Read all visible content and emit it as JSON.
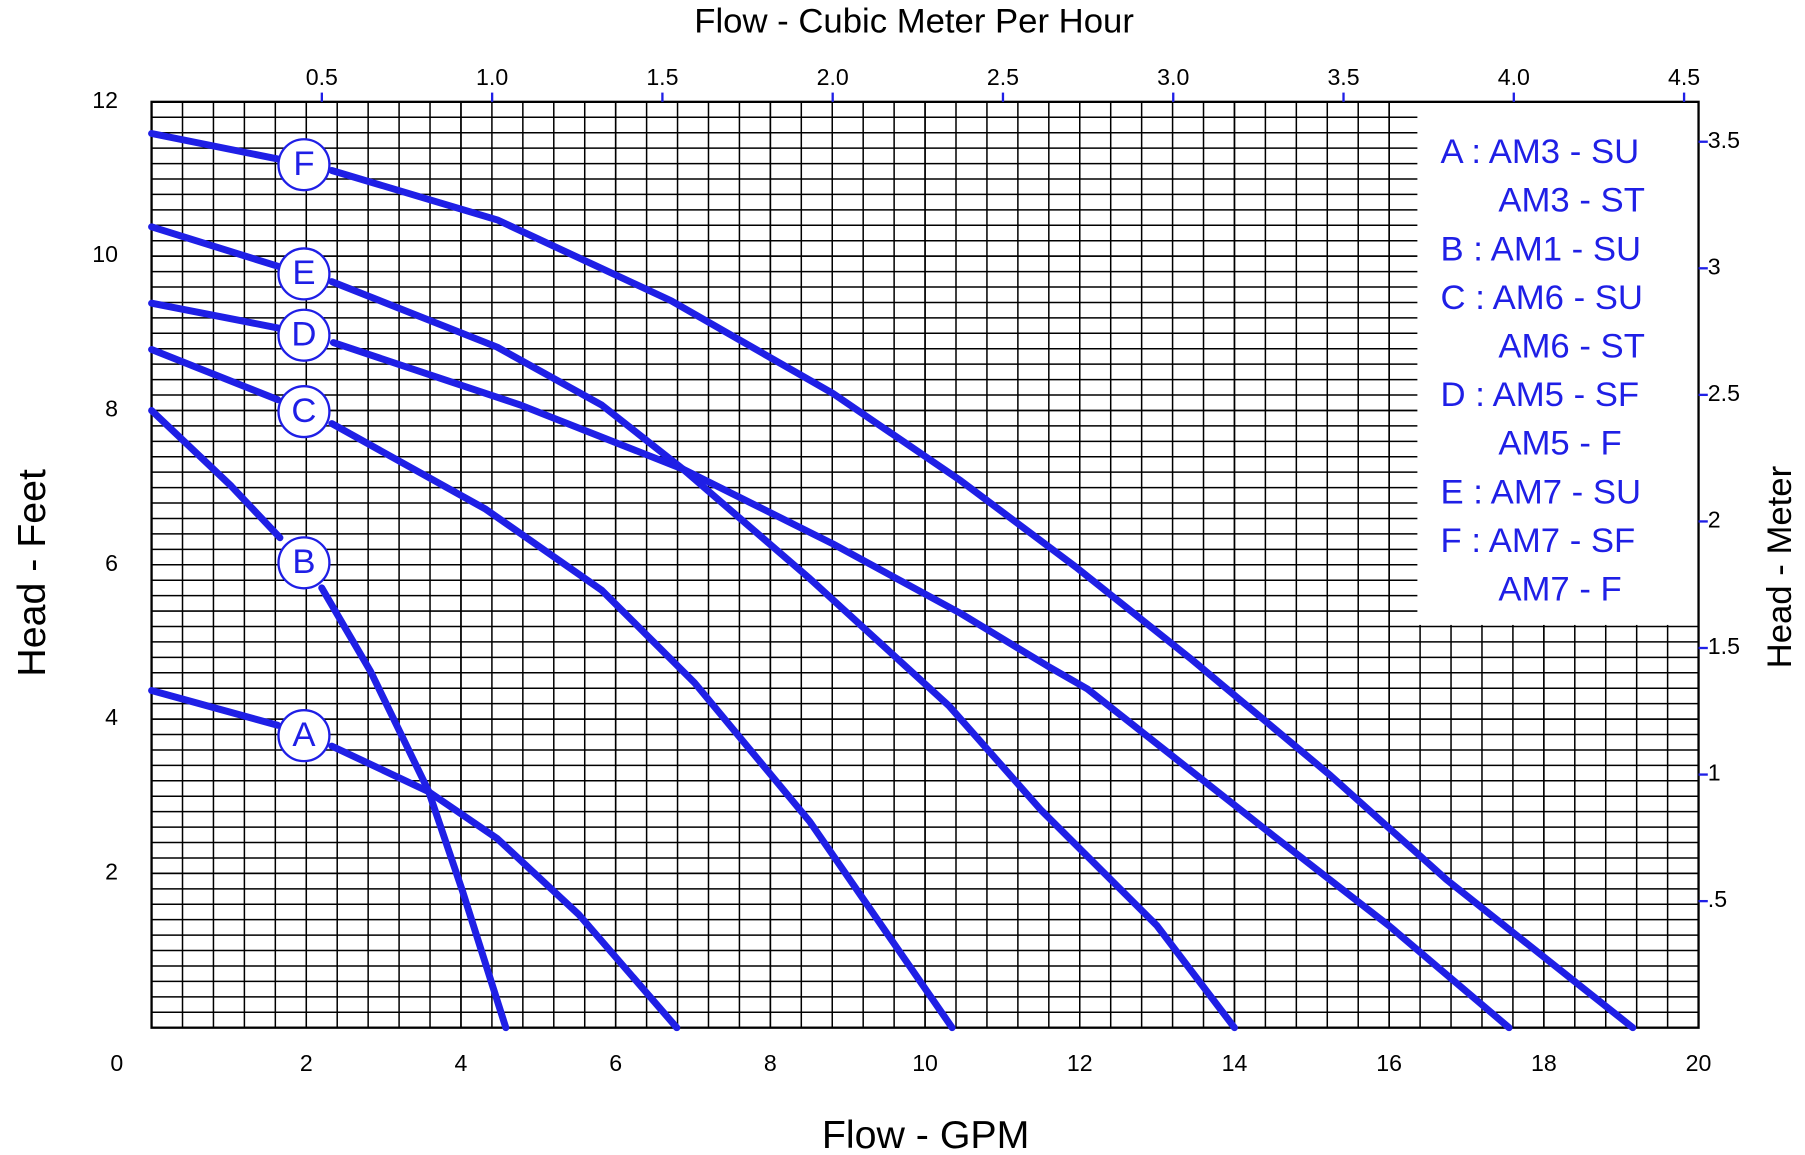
{
  "chart_data": {
    "type": "line",
    "title": "Flow - Cubic Meter Per Hour",
    "xlabel": "Flow - GPM",
    "ylabel": "Head - Feet",
    "y2label": "Head - Meter",
    "xlim": [
      0,
      20
    ],
    "xticks": [
      0,
      2,
      4,
      6,
      8,
      10,
      12,
      14,
      16,
      18,
      20
    ],
    "ylim": [
      0,
      12
    ],
    "yticks": [
      2,
      4,
      6,
      8,
      10,
      12
    ],
    "x2lim": [
      0,
      4.5425
    ],
    "x2ticks": [
      {
        "value": 0.5,
        "label": "0.5"
      },
      {
        "value": 1,
        "label": "1.0"
      },
      {
        "value": 1.5,
        "label": "1.5"
      },
      {
        "value": 2,
        "label": "2.0"
      },
      {
        "value": 2.5,
        "label": "2.5"
      },
      {
        "value": 3,
        "label": "3.0"
      },
      {
        "value": 3.5,
        "label": "3.5"
      },
      {
        "value": 4,
        "label": "4.0"
      },
      {
        "value": 4.5,
        "label": "4.5"
      }
    ],
    "y2lim": [
      0,
      3.6576
    ],
    "y2ticks": [
      {
        "value": 0.5,
        "label": ".5"
      },
      1,
      1.5,
      2,
      2.5,
      3,
      3.5
    ],
    "grid": true,
    "color": "#1f1fe6",
    "legend": [
      "A : AM3 - SU",
      "AM3 - ST",
      "B : AM1 - SU",
      "C : AM6 - SU",
      "AM6 - ST",
      "D : AM5 - SF",
      "AM5 - F",
      "E : AM7 - SU",
      "F : AM7 - SF",
      "AM7 - F"
    ],
    "series": [
      {
        "name": "A",
        "x": [
          0,
          1.63,
          1.97,
          2.33,
          3.58,
          4.47,
          5.52,
          6.79
        ],
        "values": [
          4.37,
          3.92,
          null,
          3.65,
          3.06,
          2.45,
          1.47,
          0
        ]
      },
      {
        "name": "B",
        "x": [
          0,
          1.03,
          1.66,
          1.97,
          2.2,
          2.83,
          3.58,
          4.02,
          4.58
        ],
        "values": [
          8.0,
          7.02,
          6.35,
          null,
          5.7,
          4.62,
          3.07,
          1.77,
          0
        ]
      },
      {
        "name": "C",
        "x": [
          0,
          1.63,
          1.97,
          2.33,
          4.32,
          5.82,
          7.02,
          8.51,
          10.35
        ],
        "values": [
          8.79,
          8.14,
          null,
          7.83,
          6.72,
          5.67,
          4.47,
          2.67,
          0
        ]
      },
      {
        "name": "D",
        "x": [
          0,
          1.63,
          1.97,
          2.35,
          4.77,
          6.87,
          8.81,
          10.46,
          11.58,
          12.1,
          14.5,
          16.0,
          17.55
        ],
        "values": [
          9.39,
          9.07,
          null,
          8.88,
          8.07,
          7.24,
          6.27,
          5.37,
          4.69,
          4.39,
          2.49,
          1.32,
          0
        ]
      },
      {
        "name": "E",
        "x": [
          0,
          1.63,
          1.97,
          2.33,
          4.47,
          5.82,
          6.87,
          8.51,
          10.31,
          11.5,
          13.0,
          14.0
        ],
        "values": [
          10.38,
          9.87,
          null,
          9.67,
          8.82,
          8.07,
          7.24,
          5.82,
          4.17,
          2.82,
          1.32,
          0
        ]
      },
      {
        "name": "F",
        "x": [
          0,
          1.63,
          1.97,
          2.33,
          4.47,
          6.72,
          8.81,
          10.46,
          11.95,
          13.45,
          15.24,
          16.74,
          19.15
        ],
        "values": [
          11.59,
          11.26,
          null,
          11.11,
          10.47,
          9.42,
          8.22,
          7.09,
          5.97,
          4.77,
          3.27,
          1.92,
          0
        ]
      }
    ]
  }
}
